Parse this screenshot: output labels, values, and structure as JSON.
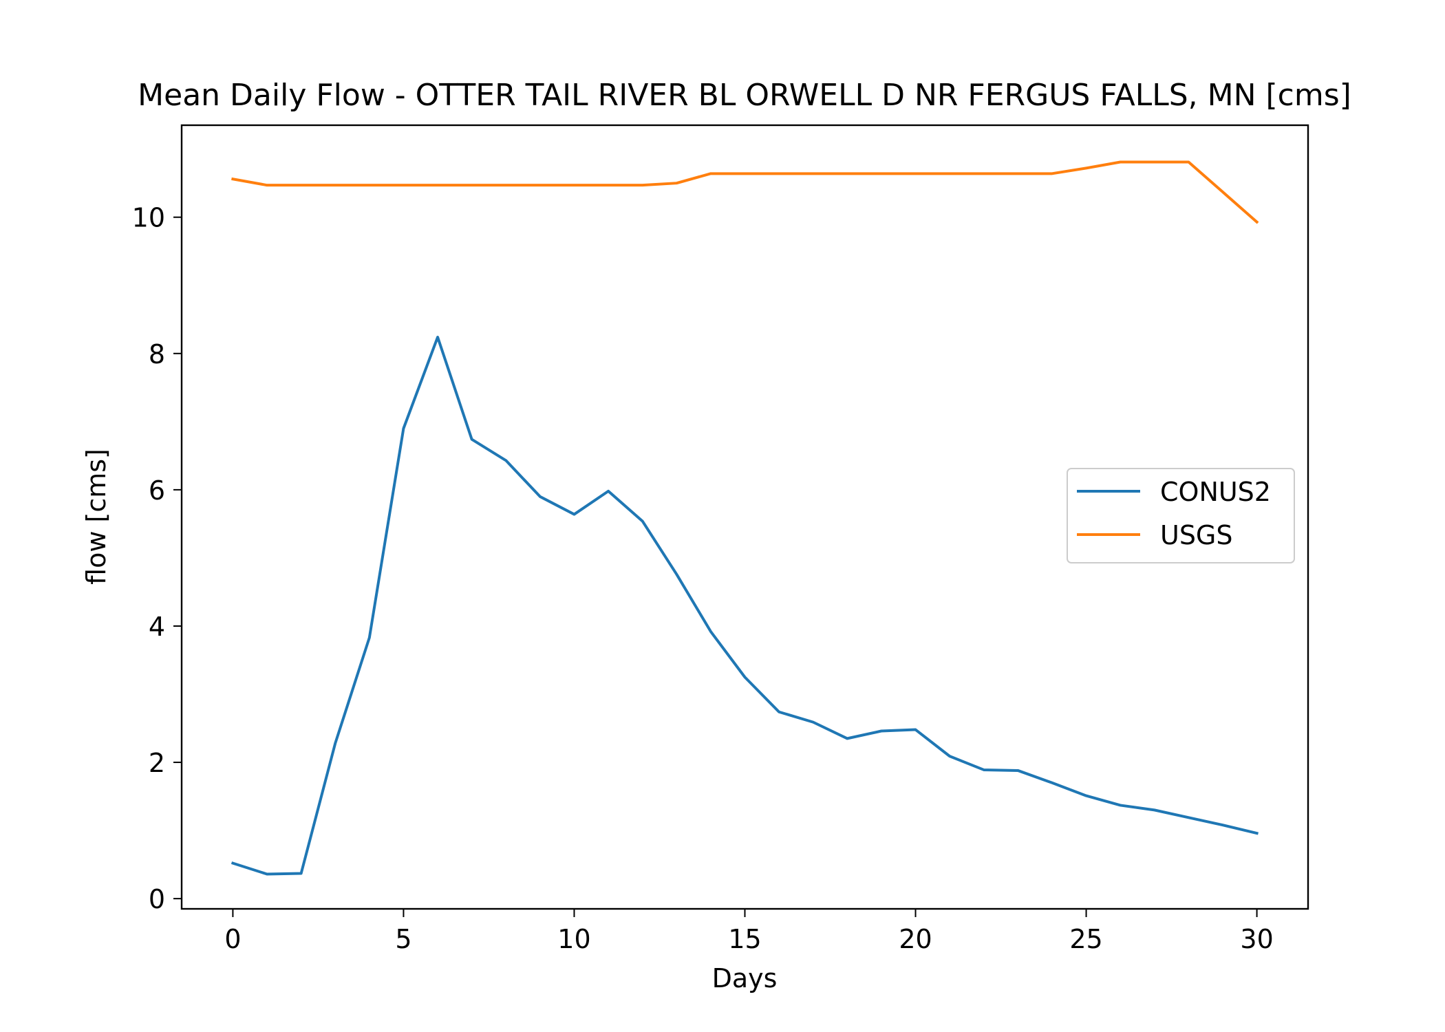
{
  "chart_data": {
    "type": "line",
    "title": "Mean Daily Flow - OTTER TAIL RIVER BL ORWELL D NR FERGUS FALLS, MN [cms]",
    "xlabel": "Days",
    "ylabel": "flow [cms]",
    "xlim": [
      -1.5,
      31.5
    ],
    "ylim": [
      -0.15,
      11.35
    ],
    "xticks": [
      0,
      5,
      10,
      15,
      20,
      25,
      30
    ],
    "yticks": [
      0,
      2,
      4,
      6,
      8,
      10
    ],
    "grid": false,
    "legend_position": "center-right",
    "x": [
      0,
      1,
      2,
      3,
      4,
      5,
      6,
      7,
      8,
      9,
      10,
      11,
      12,
      13,
      14,
      15,
      16,
      17,
      18,
      19,
      20,
      21,
      22,
      23,
      24,
      25,
      26,
      27,
      28,
      29,
      30
    ],
    "series": [
      {
        "name": "CONUS2",
        "color": "#1f77b4",
        "values": [
          0.52,
          0.36,
          0.37,
          2.28,
          3.83,
          6.9,
          8.24,
          6.74,
          6.43,
          5.9,
          5.64,
          5.98,
          5.54,
          4.76,
          3.92,
          3.25,
          2.74,
          2.59,
          2.35,
          2.46,
          2.48,
          2.09,
          1.89,
          1.88,
          1.7,
          1.51,
          1.37,
          1.3,
          1.19,
          1.08,
          0.96
        ]
      },
      {
        "name": "USGS",
        "color": "#ff7f0e",
        "values": [
          10.56,
          10.47,
          10.47,
          10.47,
          10.47,
          10.47,
          10.47,
          10.47,
          10.47,
          10.47,
          10.47,
          10.47,
          10.47,
          10.5,
          10.64,
          10.64,
          10.64,
          10.64,
          10.64,
          10.64,
          10.64,
          10.64,
          10.64,
          10.64,
          10.64,
          10.72,
          10.81,
          10.81,
          10.81,
          10.37,
          9.93
        ]
      }
    ]
  }
}
